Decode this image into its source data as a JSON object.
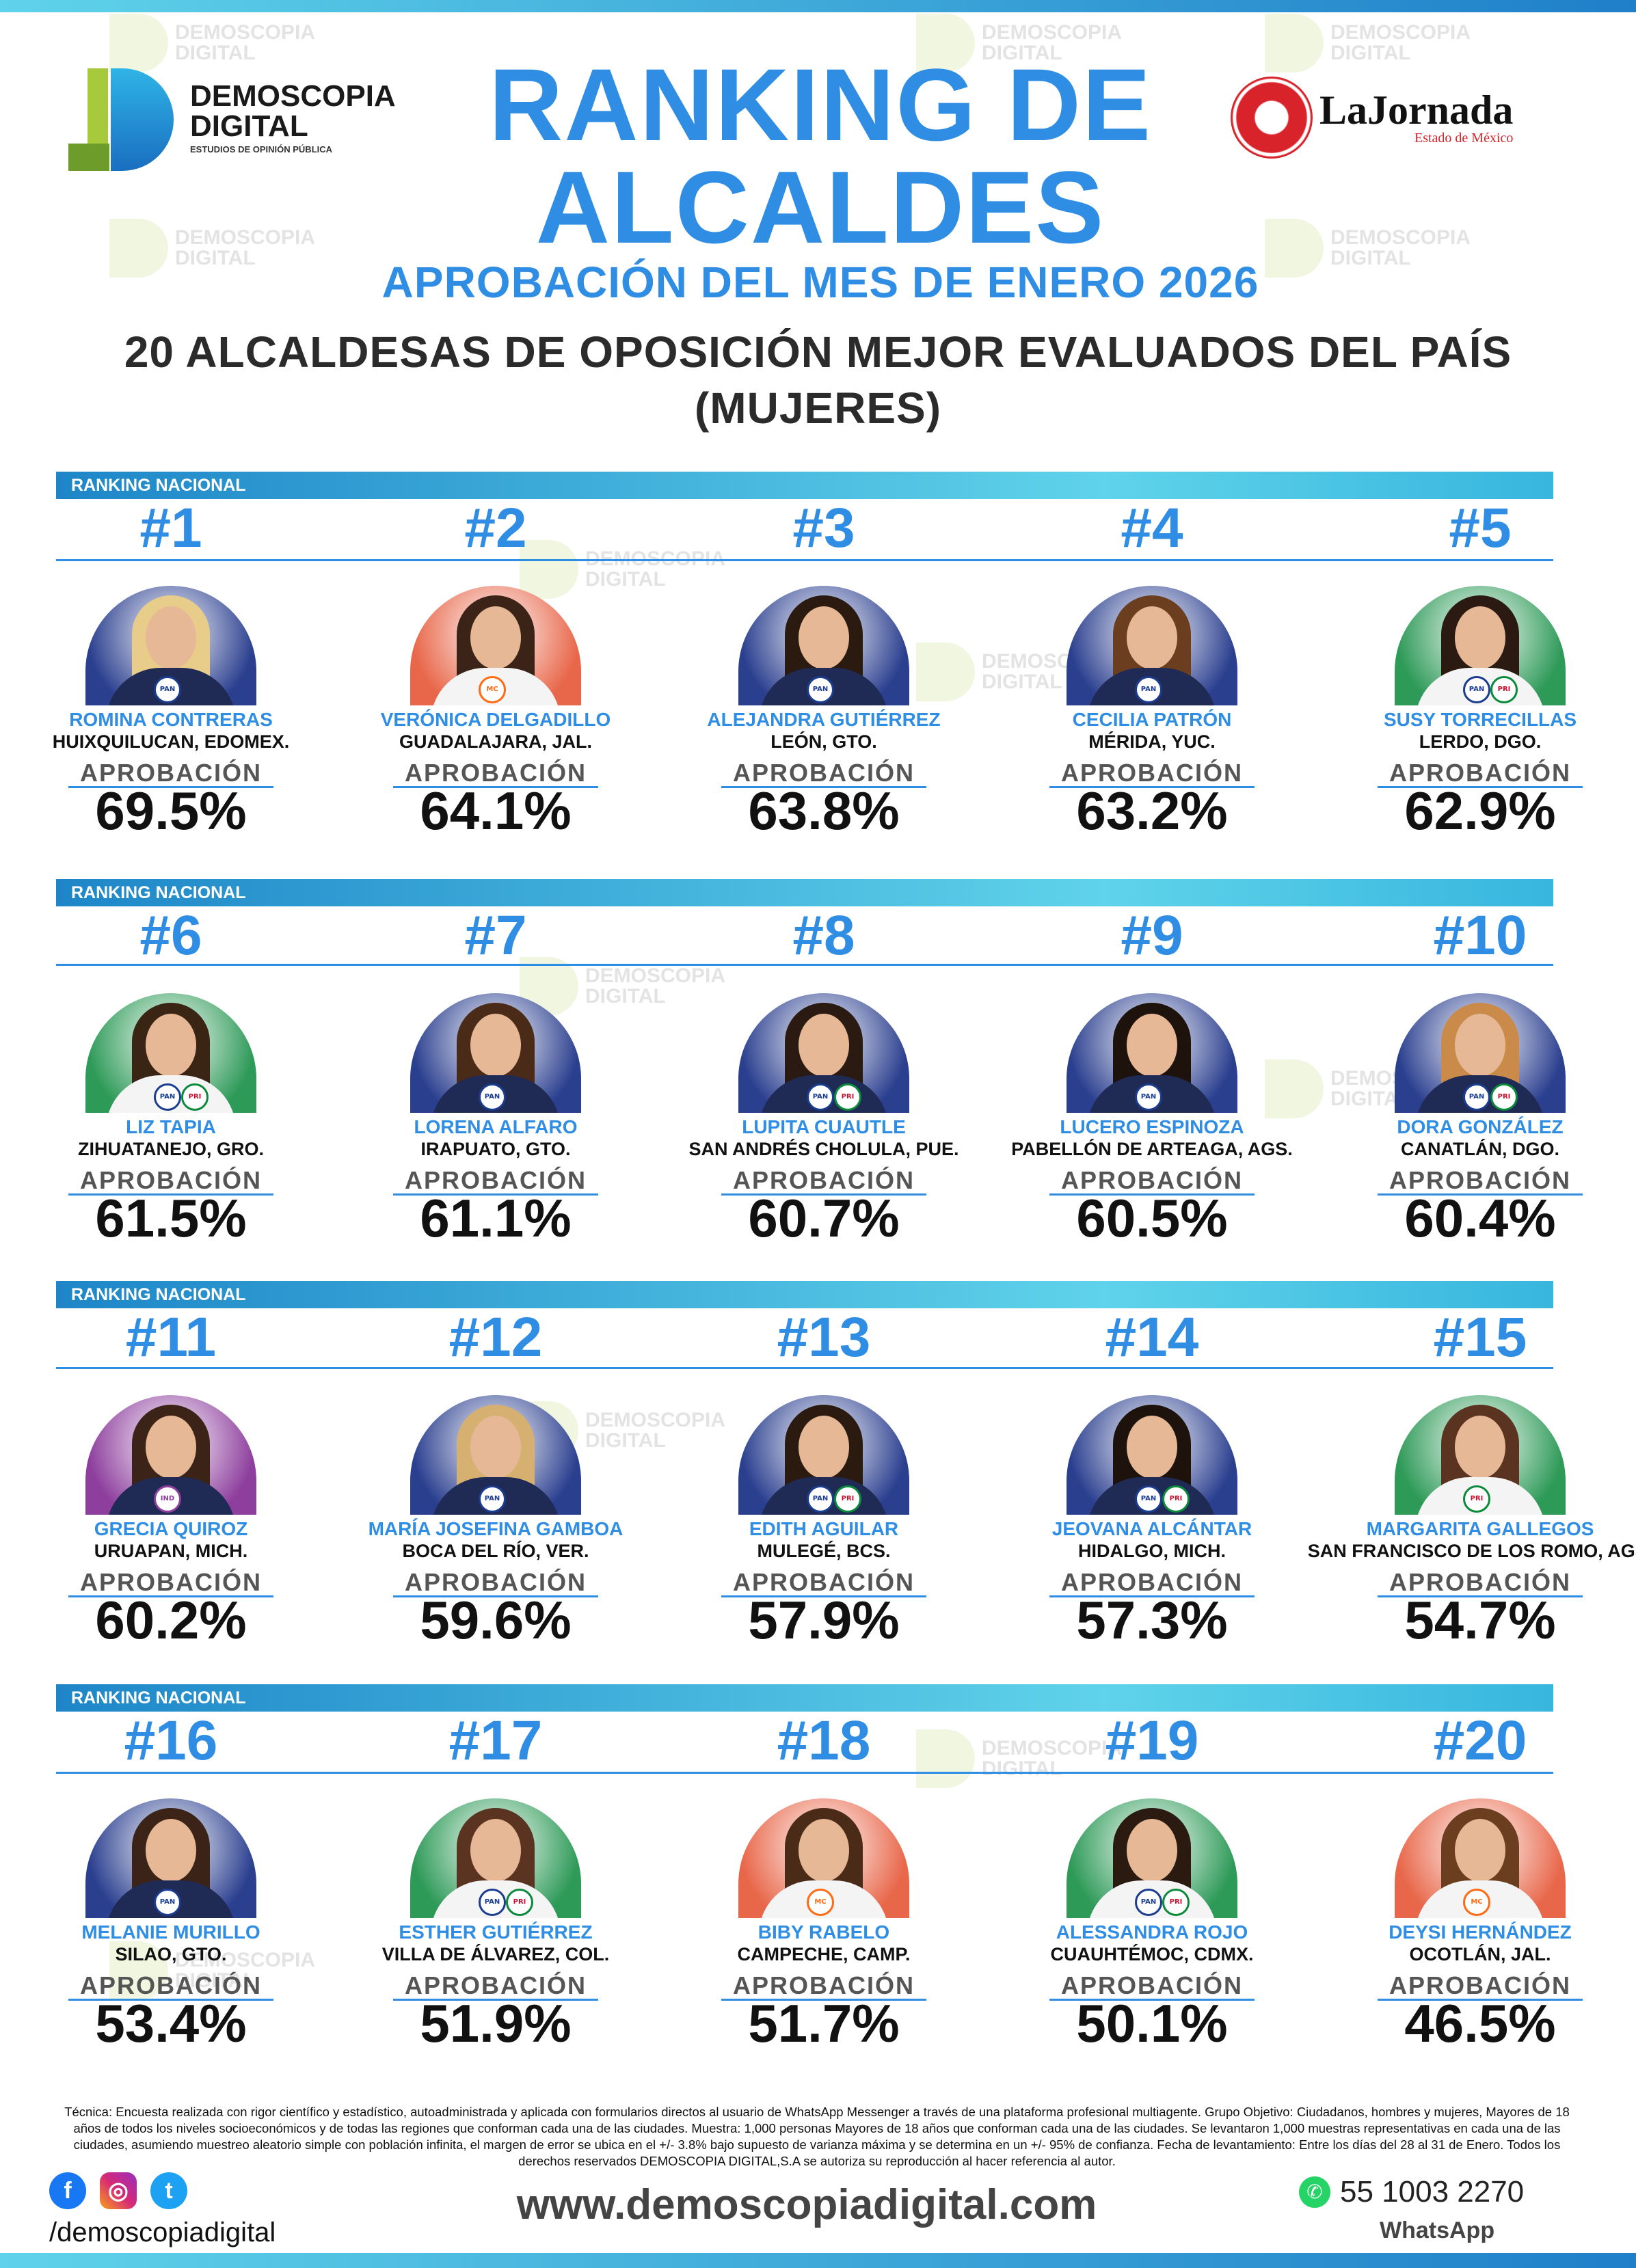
{
  "brand": {
    "name": "DEMOSCOPIA",
    "name2": "DIGITAL",
    "tagline": "ESTUDIOS DE OPINIÓN PÚBLICA",
    "partner": "LaJornada",
    "partner_sub": "Estado de México"
  },
  "header": {
    "title_line1": "RANKING DE",
    "title_line2": "ALCALDES",
    "subtitle": "APROBACIÓN DEL MES DE ENERO 2026",
    "heading_line1": "20 ALCALDESAS DE OPOSICIÓN MEJOR EVALUADOS DEL PAÍS",
    "heading_line2": "(MUJERES)"
  },
  "section_label": "RANKING NACIONAL",
  "approval_label": "APROBACIÓN",
  "mayors": [
    {
      "rank": "#1",
      "name": "ROMINA CONTRERAS",
      "city": "HUIXQUILUCAN, EDOMEX.",
      "approval": "69.5%",
      "bg": "#2b3f8f",
      "party": [
        "PAN"
      ]
    },
    {
      "rank": "#2",
      "name": "VERÓNICA DELGADILLO",
      "city": "GUADALAJARA, JAL.",
      "approval": "64.1%",
      "bg": "#e8674a",
      "party": [
        "MC"
      ]
    },
    {
      "rank": "#3",
      "name": "ALEJANDRA GUTIÉRREZ",
      "city": "LEÓN, GTO.",
      "approval": "63.8%",
      "bg": "#2b3f8f",
      "party": [
        "PAN"
      ]
    },
    {
      "rank": "#4",
      "name": "CECILIA PATRÓN",
      "city": "MÉRIDA, YUC.",
      "approval": "63.2%",
      "bg": "#2b3f8f",
      "party": [
        "PAN"
      ]
    },
    {
      "rank": "#5",
      "name": "SUSY TORRECILLAS",
      "city": "LERDO, DGO.",
      "approval": "62.9%",
      "bg": "#2e9a58",
      "party": [
        "PAN",
        "PRI"
      ]
    },
    {
      "rank": "#6",
      "name": "LIZ TAPIA",
      "city": "ZIHUATANEJO, GRO.",
      "approval": "61.5%",
      "bg": "#2e9a58",
      "party": [
        "PAN",
        "PRI"
      ]
    },
    {
      "rank": "#7",
      "name": "LORENA ALFARO",
      "city": "IRAPUATO, GTO.",
      "approval": "61.1%",
      "bg": "#2b3f8f",
      "party": [
        "PAN"
      ]
    },
    {
      "rank": "#8",
      "name": "LUPITA CUAUTLE",
      "city": "SAN ANDRÉS CHOLULA, PUE.",
      "approval": "60.7%",
      "bg": "#2b3f8f",
      "party": [
        "PAN",
        "PRI"
      ]
    },
    {
      "rank": "#9",
      "name": "LUCERO ESPINOZA",
      "city": "PABELLÓN DE ARTEAGA, AGS.",
      "approval": "60.5%",
      "bg": "#2b3f8f",
      "party": [
        "PAN"
      ]
    },
    {
      "rank": "#10",
      "name": "DORA GONZÁLEZ",
      "city": "CANATLÁN, DGO.",
      "approval": "60.4%",
      "bg": "#2b3f8f",
      "party": [
        "PAN",
        "PRI"
      ]
    },
    {
      "rank": "#11",
      "name": "GRECIA QUIROZ",
      "city": "URUAPAN, MICH.",
      "approval": "60.2%",
      "bg": "#8e3f9e",
      "party": [
        "IND"
      ]
    },
    {
      "rank": "#12",
      "name": "MARÍA JOSEFINA GAMBOA",
      "city": "BOCA DEL RÍO, VER.",
      "approval": "59.6%",
      "bg": "#2b3f8f",
      "party": [
        "PAN"
      ]
    },
    {
      "rank": "#13",
      "name": "EDITH AGUILAR",
      "city": "MULEGÉ, BCS.",
      "approval": "57.9%",
      "bg": "#2b3f8f",
      "party": [
        "PAN",
        "PRI"
      ]
    },
    {
      "rank": "#14",
      "name": "JEOVANA ALCÁNTAR",
      "city": "HIDALGO, MICH.",
      "approval": "57.3%",
      "bg": "#2b3f8f",
      "party": [
        "PAN",
        "PRI"
      ]
    },
    {
      "rank": "#15",
      "name": "MARGARITA GALLEGOS",
      "city": "SAN FRANCISCO DE LOS ROMO, AGS.",
      "approval": "54.7%",
      "bg": "#2e9a58",
      "party": [
        "PRI"
      ]
    },
    {
      "rank": "#16",
      "name": "MELANIE MURILLO",
      "city": "SILAO, GTO.",
      "approval": "53.4%",
      "bg": "#2b3f8f",
      "party": [
        "PAN"
      ]
    },
    {
      "rank": "#17",
      "name": "ESTHER GUTIÉRREZ",
      "city": "VILLA DE ÁLVAREZ, COL.",
      "approval": "51.9%",
      "bg": "#2e9a58",
      "party": [
        "PAN",
        "PRI"
      ]
    },
    {
      "rank": "#18",
      "name": "BIBY RABELO",
      "city": "CAMPECHE, CAMP.",
      "approval": "51.7%",
      "bg": "#e8674a",
      "party": [
        "MC"
      ]
    },
    {
      "rank": "#19",
      "name": "ALESSANDRA ROJO",
      "city": "CUAUHTÉMOC, CDMX.",
      "approval": "50.1%",
      "bg": "#2e9a58",
      "party": [
        "PAN",
        "PRI"
      ]
    },
    {
      "rank": "#20",
      "name": "DEYSI HERNÁNDEZ",
      "city": "OCOTLÁN, JAL.",
      "approval": "46.5%",
      "bg": "#e8674a",
      "party": [
        "MC"
      ]
    }
  ],
  "methodology": "Técnica: Encuesta realizada con rigor científico y estadístico, autoadministrada y aplicada con formularios directos al usuario de WhatsApp Messenger a través de una plataforma profesional multiagente. Grupo Objetivo: Ciudadanos, hombres y mujeres, Mayores de 18 años de todos los niveles socioeconómicos y de todas las regiones que conforman cada una de las ciudades. Muestra: 1,000 personas Mayores de 18 años que conforman cada una de las ciudades. Se levantaron 1,000 muestras representativas en cada una de las ciudades, asumiendo muestreo aleatorio simple con población infinita, el margen de error se ubica en el +/- 3.8% bajo supuesto de varianza máxima y se determina en un +/- 95% de confianza. Fecha de levantamiento: Entre los días del 28 al 31 de Enero. Todos los derechos reservados DEMOSCOPIA DIGITAL,S.A se autoriza su reproducción al hacer referencia al autor.",
  "footer": {
    "handle": "/demoscopiadigital",
    "website": "www.demoscopiadigital.com",
    "phone": "55 1003 2270",
    "phone_label": "WhatsApp"
  },
  "icons": {
    "facebook": "facebook-icon",
    "instagram": "instagram-icon",
    "twitter": "twitter-icon",
    "whatsapp": "whatsapp-icon"
  },
  "colors": {
    "accent": "#2f8de4",
    "bar_start": "#1e86c8",
    "bar_end": "#5fd3ea"
  }
}
